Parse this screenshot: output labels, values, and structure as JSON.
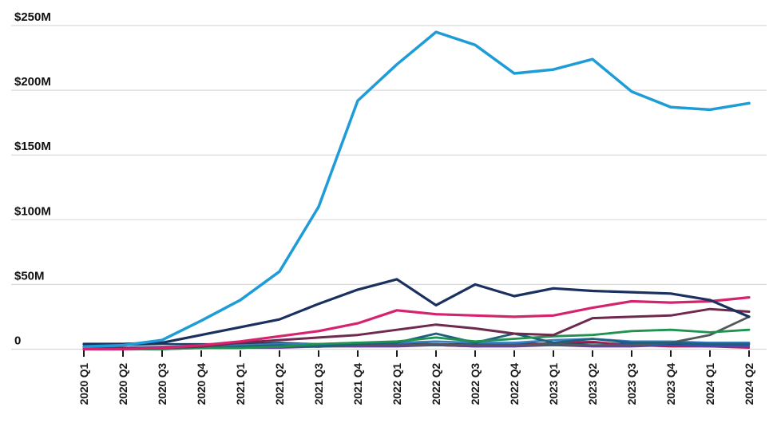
{
  "chart_data": {
    "type": "line",
    "title": "",
    "xlabel": "",
    "ylabel": "",
    "legend": "none",
    "grid": true,
    "x_categories": [
      "2020 Q1",
      "2020 Q2",
      "2020 Q3",
      "2020 Q4",
      "2021 Q1",
      "2021 Q2",
      "2021 Q3",
      "2021 Q4",
      "2022 Q1",
      "2022 Q2",
      "2022 Q3",
      "2022 Q4",
      "2023 Q1",
      "2023 Q2",
      "2023 Q3",
      "2023 Q4",
      "2024 Q1",
      "2024 Q2"
    ],
    "y_axis": {
      "unit": "$M",
      "range": [
        0,
        250
      ],
      "ticks": [
        {
          "label": "$250M",
          "value": 250
        },
        {
          "label": "$200M",
          "value": 200
        },
        {
          "label": "$150M",
          "value": 150
        },
        {
          "label": "$100M",
          "value": 100
        },
        {
          "label": "$50M",
          "value": 50
        },
        {
          "label": "0",
          "value": 0
        }
      ]
    },
    "series": [
      {
        "name": "series-cyan",
        "color": "#1E9CD7",
        "width": 3.5,
        "values": [
          2,
          3,
          7,
          22,
          38,
          60,
          110,
          192,
          220,
          245,
          235,
          213,
          216,
          224,
          199,
          187,
          185,
          190
        ]
      },
      {
        "name": "series-navy",
        "color": "#1A3160",
        "width": 3.2,
        "values": [
          4,
          4,
          5,
          11,
          17,
          23,
          35,
          46,
          54,
          34,
          50,
          41,
          47,
          45,
          44,
          43,
          38,
          25
        ]
      },
      {
        "name": "series-pink",
        "color": "#D5246E",
        "width": 3.2,
        "values": [
          0,
          0,
          1,
          3,
          6,
          10,
          14,
          20,
          30,
          27,
          26,
          25,
          26,
          32,
          37,
          36,
          37,
          40
        ]
      },
      {
        "name": "series-maroon",
        "color": "#6E2A4E",
        "width": 3.0,
        "values": [
          0,
          1,
          1,
          2,
          5,
          7,
          9,
          11,
          15,
          19,
          16,
          12,
          11,
          24,
          25,
          26,
          31,
          29
        ]
      },
      {
        "name": "series-green",
        "color": "#1F9150",
        "width": 2.8,
        "values": [
          0,
          0,
          0,
          1,
          1,
          2,
          4,
          5,
          6,
          9,
          6,
          8,
          10,
          11,
          14,
          15,
          13,
          15
        ]
      },
      {
        "name": "series-teal",
        "color": "#1E5F7D",
        "width": 2.8,
        "values": [
          0,
          0,
          1,
          1,
          2,
          3,
          2,
          4,
          5,
          12,
          5,
          12,
          5,
          8,
          5,
          5,
          4,
          4
        ]
      },
      {
        "name": "series-gray",
        "color": "#55575B",
        "width": 2.8,
        "values": [
          0,
          0,
          0,
          1,
          1,
          2,
          2,
          3,
          3,
          4,
          3,
          3,
          4,
          3,
          3,
          5,
          11,
          25
        ]
      },
      {
        "name": "series-steel-blue",
        "color": "#3A7FBF",
        "width": 2.6,
        "values": [
          1,
          1,
          2,
          3,
          3,
          4,
          4,
          5,
          5,
          6,
          5,
          5,
          7,
          8,
          6,
          6,
          5,
          5
        ]
      },
      {
        "name": "series-royal-blue",
        "color": "#2D55A8",
        "width": 2.2,
        "values": [
          0,
          0,
          1,
          1,
          2,
          2,
          3,
          3,
          4,
          3,
          3,
          4,
          3,
          3,
          4,
          3,
          3,
          3
        ]
      },
      {
        "name": "series-purple",
        "color": "#6B3FA0",
        "width": 2.2,
        "values": [
          0,
          0,
          0,
          1,
          1,
          1,
          2,
          2,
          2,
          3,
          2,
          2,
          3,
          2,
          2,
          3,
          2,
          2
        ]
      },
      {
        "name": "series-crimson",
        "color": "#B51E55",
        "width": 2.2,
        "values": [
          0,
          0,
          1,
          2,
          2,
          3,
          2,
          3,
          4,
          3,
          2,
          3,
          5,
          6,
          3,
          2,
          2,
          1
        ]
      },
      {
        "name": "series-dark-slate",
        "color": "#17405E",
        "width": 2.2,
        "values": [
          3,
          3,
          4,
          4,
          4,
          5,
          4,
          4,
          5,
          4,
          4,
          5,
          4,
          5,
          4,
          4,
          5,
          5
        ]
      }
    ]
  },
  "styles": {
    "background": "#FFFFFF",
    "grid_color": "#D9D9D9",
    "tick_color": "#1A1A1A",
    "axis_text_color": "#111111"
  }
}
